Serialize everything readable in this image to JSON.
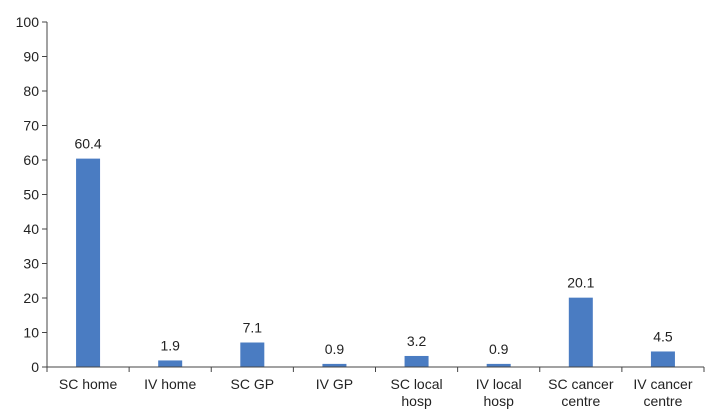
{
  "chart_data": {
    "type": "bar",
    "title": "",
    "xlabel": "",
    "ylabel": "",
    "categories": [
      [
        "SC home"
      ],
      [
        "IV home"
      ],
      [
        "SC GP"
      ],
      [
        "IV GP"
      ],
      [
        "SC local",
        "hosp"
      ],
      [
        "IV local",
        "hosp"
      ],
      [
        "SC cancer",
        "centre"
      ],
      [
        "IV cancer",
        "centre"
      ]
    ],
    "values": [
      60.4,
      1.9,
      7.1,
      0.9,
      3.2,
      0.9,
      20.1,
      4.5
    ],
    "value_labels": [
      "60.4",
      "1.9",
      "7.1",
      "0.9",
      "3.2",
      "0.9",
      "20.1",
      "4.5"
    ],
    "ylim": [
      0,
      100
    ],
    "yticks": [
      0,
      10,
      20,
      30,
      40,
      50,
      60,
      70,
      80,
      90,
      100
    ],
    "grid": false,
    "legend": "none",
    "bar_color": "#4a7cc2"
  }
}
